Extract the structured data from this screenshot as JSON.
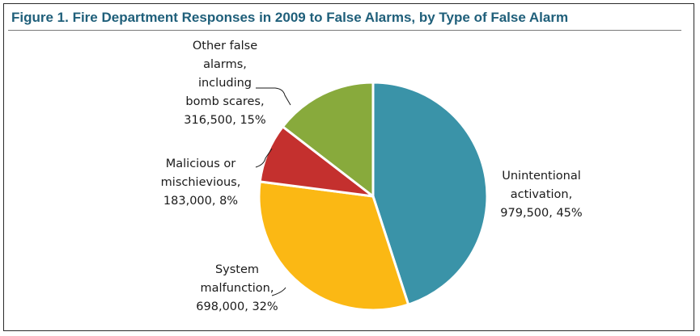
{
  "title": "Figure 1. Fire Department Responses in 2009 to False Alarms, by Type of False Alarm",
  "chart_data": {
    "type": "pie",
    "title": "Figure 1. Fire Department Responses in 2009 to False Alarms, by Type of False Alarm",
    "slices": [
      {
        "label_lines": [
          "Unintentional",
          "activation,",
          "979,500, 45%"
        ],
        "value": 979500,
        "percent": 45,
        "color": "#3a93a8"
      },
      {
        "label_lines": [
          "System",
          "malfunction,",
          "698,000, 32%"
        ],
        "value": 698000,
        "percent": 32,
        "color": "#fbb814"
      },
      {
        "label_lines": [
          "Malicious or",
          "mischievious,",
          "183,000, 8%"
        ],
        "value": 183000,
        "percent": 8,
        "color": "#c4302e"
      },
      {
        "label_lines": [
          "Other false",
          "alarms,",
          "including",
          "bomb scares,",
          "316,500, 15%"
        ],
        "value": 316500,
        "percent": 15,
        "color": "#88aa3c"
      }
    ]
  }
}
